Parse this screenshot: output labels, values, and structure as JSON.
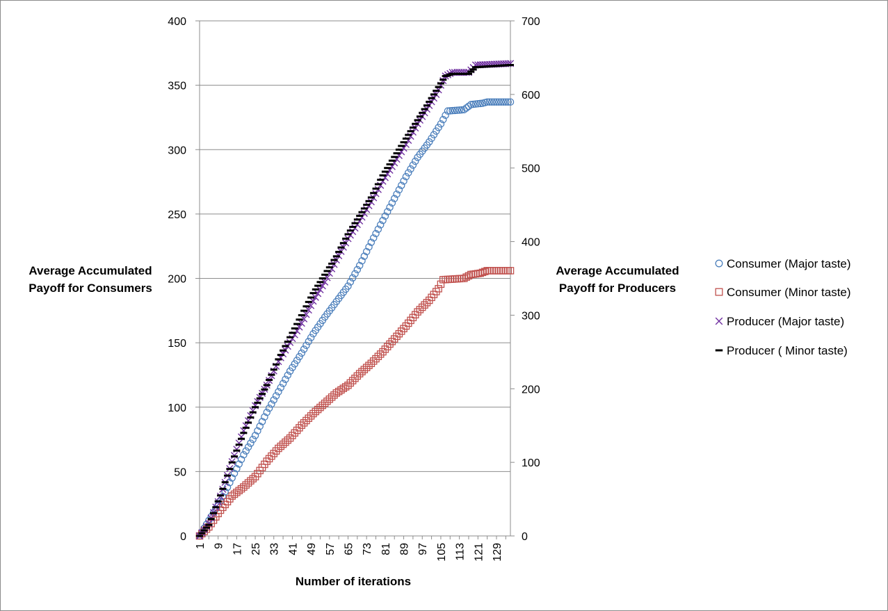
{
  "chart_data": {
    "type": "scatter",
    "xlabel": "Number of iterations",
    "ylabel_left": [
      "Average Accumulated",
      "Payoff for Consumers"
    ],
    "ylabel_right": [
      "Average Accumulated",
      "Payoff for Producers"
    ],
    "x_range": [
      1,
      135
    ],
    "x_tick_labels": [
      "1",
      "9",
      "17",
      "25",
      "33",
      "41",
      "49",
      "57",
      "65",
      "73",
      "81",
      "89",
      "97",
      "105",
      "113",
      "121",
      "129"
    ],
    "ylim_left": [
      0,
      400
    ],
    "y_ticks_left": [
      "0",
      "50",
      "100",
      "150",
      "200",
      "250",
      "300",
      "350",
      "400"
    ],
    "ylim_right": [
      0,
      700
    ],
    "y_ticks_right": [
      "0",
      "100",
      "200",
      "300",
      "400",
      "500",
      "600",
      "700"
    ],
    "grid": "horizontal",
    "legend_position": "right",
    "series": [
      {
        "name": "Consumer (Major taste)",
        "marker": "circle",
        "color": "#4a7ebb",
        "axis": "left",
        "points": [
          [
            1,
            0
          ],
          [
            5,
            12
          ],
          [
            10,
            27
          ],
          [
            15,
            45
          ],
          [
            20,
            63
          ],
          [
            25,
            78
          ],
          [
            30,
            96
          ],
          [
            35,
            112
          ],
          [
            40,
            128
          ],
          [
            45,
            142
          ],
          [
            50,
            157
          ],
          [
            55,
            170
          ],
          [
            60,
            182
          ],
          [
            65,
            194
          ],
          [
            70,
            210
          ],
          [
            75,
            228
          ],
          [
            80,
            245
          ],
          [
            85,
            262
          ],
          [
            90,
            279
          ],
          [
            95,
            294
          ],
          [
            100,
            306
          ],
          [
            105,
            320
          ],
          [
            108,
            330
          ],
          [
            115,
            331
          ],
          [
            118,
            335
          ],
          [
            123,
            336
          ],
          [
            125,
            337
          ],
          [
            135,
            337
          ]
        ]
      },
      {
        "name": "Consumer (Minor taste)",
        "marker": "square",
        "color": "#c0504d",
        "axis": "left",
        "points": [
          [
            1,
            0
          ],
          [
            5,
            7
          ],
          [
            10,
            20
          ],
          [
            15,
            31
          ],
          [
            20,
            38
          ],
          [
            25,
            46
          ],
          [
            30,
            58
          ],
          [
            35,
            68
          ],
          [
            40,
            76
          ],
          [
            45,
            86
          ],
          [
            50,
            95
          ],
          [
            55,
            103
          ],
          [
            60,
            111
          ],
          [
            65,
            117
          ],
          [
            70,
            126
          ],
          [
            75,
            134
          ],
          [
            80,
            143
          ],
          [
            85,
            153
          ],
          [
            90,
            163
          ],
          [
            95,
            174
          ],
          [
            100,
            183
          ],
          [
            104,
            192
          ],
          [
            106,
            199
          ],
          [
            115,
            200
          ],
          [
            118,
            203
          ],
          [
            122,
            204
          ],
          [
            125,
            206
          ],
          [
            135,
            206
          ]
        ]
      },
      {
        "name": "Producer (Major taste)",
        "marker": "x",
        "color": "#7030a0",
        "axis": "right",
        "points": [
          [
            1,
            0
          ],
          [
            5,
            17
          ],
          [
            10,
            54
          ],
          [
            15,
            101
          ],
          [
            20,
            143
          ],
          [
            25,
            177
          ],
          [
            30,
            205
          ],
          [
            35,
            237
          ],
          [
            40,
            263
          ],
          [
            45,
            289
          ],
          [
            50,
            319
          ],
          [
            55,
            345
          ],
          [
            60,
            375
          ],
          [
            65,
            404
          ],
          [
            70,
            428
          ],
          [
            75,
            454
          ],
          [
            80,
            482
          ],
          [
            85,
            507
          ],
          [
            90,
            532
          ],
          [
            95,
            560
          ],
          [
            100,
            585
          ],
          [
            103,
            600
          ],
          [
            107,
            625
          ],
          [
            110,
            630
          ],
          [
            117,
            630
          ],
          [
            120,
            640
          ],
          [
            135,
            642
          ]
        ]
      },
      {
        "name": "Producer ( Minor taste)",
        "marker": "dash",
        "color": "#000000",
        "axis": "right",
        "points": [
          [
            1,
            0
          ],
          [
            5,
            15
          ],
          [
            10,
            55
          ],
          [
            15,
            100
          ],
          [
            20,
            140
          ],
          [
            25,
            175
          ],
          [
            30,
            205
          ],
          [
            35,
            240
          ],
          [
            40,
            270
          ],
          [
            45,
            300
          ],
          [
            50,
            330
          ],
          [
            55,
            355
          ],
          [
            60,
            380
          ],
          [
            65,
            410
          ],
          [
            70,
            435
          ],
          [
            75,
            460
          ],
          [
            80,
            490
          ],
          [
            85,
            515
          ],
          [
            90,
            540
          ],
          [
            95,
            565
          ],
          [
            100,
            590
          ],
          [
            103,
            605
          ],
          [
            107,
            625
          ],
          [
            110,
            628
          ],
          [
            117,
            628
          ],
          [
            120,
            637
          ],
          [
            135,
            640
          ]
        ]
      }
    ]
  }
}
